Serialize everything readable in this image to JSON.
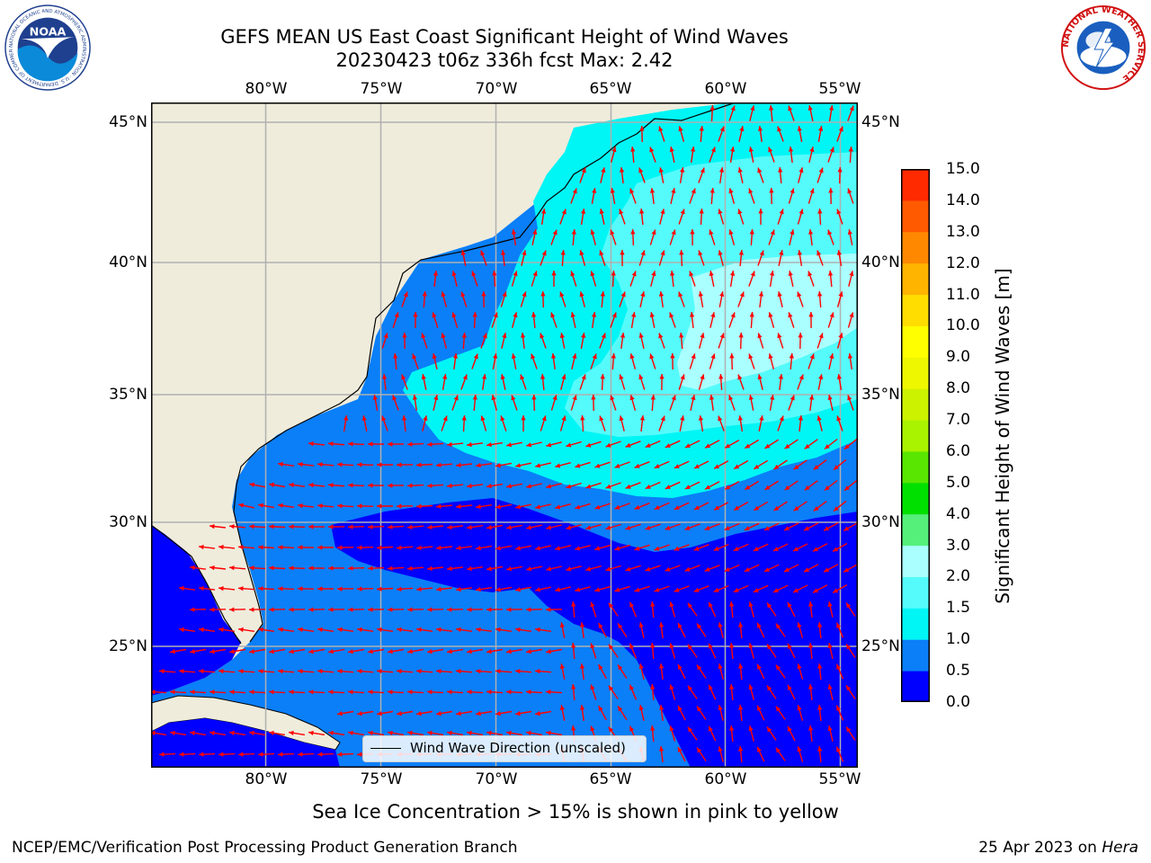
{
  "title": {
    "line1": "GEFS MEAN US East Coast Significant Height of Wind Waves",
    "line2": "20230423 t06z 336h fcst   Max: 2.42"
  },
  "logos": {
    "left": "NOAA",
    "left_ring": "NATIONAL OCEANIC AND ATMOSPHERIC ADMINISTRATION · U.S. DEPARTMENT OF COMMERCE",
    "right_ring": "NATIONAL WEATHER SERVICE"
  },
  "map": {
    "lon_ticks": [
      "80°W",
      "75°W",
      "70°W",
      "65°W",
      "60°W",
      "55°W"
    ],
    "lat_ticks": [
      "45°N",
      "40°N",
      "35°N",
      "30°N",
      "25°N"
    ],
    "lon_range": [
      -85,
      -54.5
    ],
    "lat_range": [
      20,
      46
    ],
    "gridlines": true,
    "vectors": "Wind Wave Direction (unscaled)",
    "colors": {
      "land": "#efecdc",
      "ocean_0": "#0000ff",
      "ocean_05": "#0a7ff8",
      "ocean_10": "#00f5f5",
      "ocean_15": "#55fbfb",
      "ocean_20": "#aaffff",
      "arrow": "#ff0000",
      "grid": "#b0b0b0"
    }
  },
  "legend": {
    "label": "Wind Wave Direction (unscaled)"
  },
  "colorbar": {
    "title": "Significant Height of Wind Waves [m]",
    "labels": [
      "15.0",
      "14.0",
      "13.0",
      "12.0",
      "11.0",
      "10.0",
      "9.0",
      "8.0",
      "7.0",
      "6.0",
      "5.0",
      "4.0",
      "3.0",
      "2.0",
      "1.5",
      "1.0",
      "0.5",
      "0.0"
    ],
    "colors_bottom_to_top": [
      "#0000ff",
      "#0a7ff8",
      "#00f5f5",
      "#55fbfb",
      "#aaffff",
      "#55f07a",
      "#00e000",
      "#59e600",
      "#a9f200",
      "#cdf200",
      "#eef700",
      "#ffff00",
      "#ffdd00",
      "#ffb400",
      "#ff8800",
      "#ff5a00",
      "#ff2a00"
    ]
  },
  "footnote": "Sea Ice Concentration > 15% is shown in pink to yellow",
  "credit": "NCEP/EMC/Verification Post Processing Product Generation Branch",
  "date": {
    "text": "25 Apr 2023 on ",
    "machine": "Hera"
  },
  "chart_data": {
    "type": "heatmap",
    "title": "GEFS MEAN US East Coast Significant Height of Wind Waves",
    "subtitle": "20230423 t06z 336h fcst   Max: 2.42",
    "variable": "Significant Height of Wind Waves [m]",
    "max_value": 2.42,
    "x_ticks": [
      "80°W",
      "75°W",
      "70°W",
      "65°W",
      "60°W",
      "55°W"
    ],
    "y_ticks": [
      "45°N",
      "40°N",
      "35°N",
      "30°N",
      "25°N"
    ],
    "levels": [
      0,
      0.5,
      1.0,
      1.5,
      2.0,
      3.0,
      4.0,
      5.0,
      6.0,
      7.0,
      8.0,
      9.0,
      10.0,
      11.0,
      12.0,
      13.0,
      14.0,
      15.0
    ]
  }
}
